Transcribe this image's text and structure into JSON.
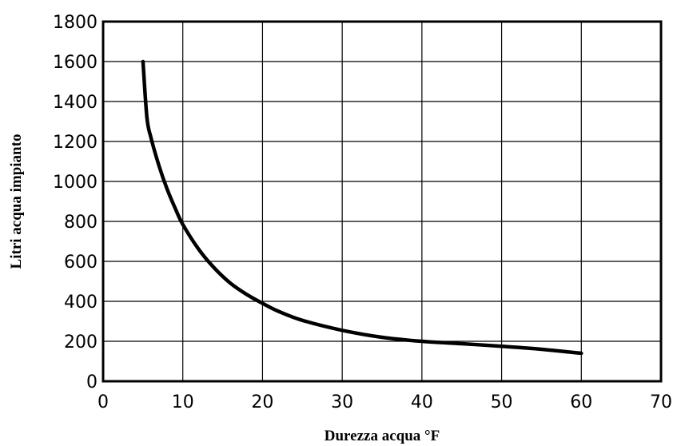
{
  "chart_data": {
    "type": "line",
    "xlabel": "Durezza acqua °F",
    "ylabel": "Litri acqua impianto",
    "xlim": [
      0,
      70
    ],
    "ylim": [
      0,
      1800
    ],
    "x_ticks": [
      0,
      10,
      20,
      30,
      40,
      50,
      60,
      70
    ],
    "y_ticks": [
      0,
      200,
      400,
      600,
      800,
      1000,
      1200,
      1400,
      1600,
      1800
    ],
    "grid": true,
    "series": [
      {
        "x": [
          5,
          5.5,
          6,
          7,
          8,
          9,
          10,
          12,
          14,
          16,
          18,
          20,
          22,
          25,
          30,
          35,
          40,
          45,
          50,
          55,
          60
        ],
        "y": [
          1600,
          1320,
          1220,
          1080,
          965,
          870,
          785,
          660,
          565,
          490,
          435,
          390,
          350,
          305,
          255,
          220,
          200,
          188,
          175,
          160,
          140
        ]
      }
    ]
  }
}
